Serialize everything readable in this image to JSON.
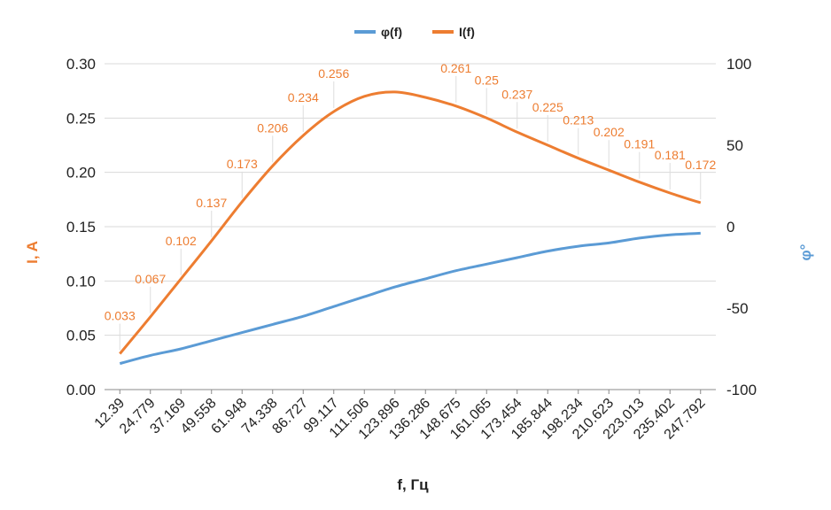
{
  "chart_data": {
    "type": "line",
    "xlabel": "f, Гц",
    "ylabel_left": "I, A",
    "ylabel_right": "φ°",
    "x": [
      12.39,
      24.779,
      37.169,
      49.558,
      61.948,
      74.338,
      86.727,
      99.117,
      111.506,
      123.896,
      136.286,
      148.675,
      161.065,
      173.454,
      185.844,
      198.234,
      210.623,
      223.013,
      235.402,
      247.792
    ],
    "x_tick_labels": [
      "12.39",
      "24.779",
      "37.169",
      "49.558",
      "61.948",
      "74.338",
      "86.727",
      "99.117",
      "111.506",
      "123.896",
      "136.286",
      "148.675",
      "161.065",
      "173.454",
      "185.844",
      "198.234",
      "210.623",
      "223.013",
      "235.402",
      "247.792"
    ],
    "ylim_left": [
      0,
      0.3
    ],
    "yticks_left": [
      "0.00",
      "0.05",
      "0.10",
      "0.15",
      "0.20",
      "0.25",
      "0.30"
    ],
    "ylim_right": [
      -100,
      100
    ],
    "yticks_right": [
      "-100",
      "-50",
      "0",
      "50",
      "100"
    ],
    "grid": true,
    "legend_position": "top",
    "series": [
      {
        "name": "φ(f)",
        "axis": "right",
        "color": "#5b9bd5",
        "values": [
          -84,
          -79,
          -75,
          -70,
          -65,
          -60,
          -55,
          -49,
          -43,
          -37,
          -32,
          -27,
          -23,
          -19,
          -15,
          -12,
          -10,
          -7,
          -5,
          -4
        ]
      },
      {
        "name": "I(f)",
        "axis": "left",
        "color": "#ed7d31",
        "values": [
          0.033,
          0.067,
          0.102,
          0.137,
          0.173,
          0.206,
          0.234,
          0.256,
          0.27,
          0.274,
          0.269,
          0.261,
          0.25,
          0.237,
          0.225,
          0.213,
          0.202,
          0.191,
          0.181,
          0.172
        ],
        "data_labels": [
          "0.033",
          "0.067",
          "0.102",
          "0.137",
          "0.173",
          "0.206",
          "0.234",
          "0.256",
          "",
          "",
          "",
          "0.261",
          "0.25",
          "0.237",
          "0.225",
          "0.213",
          "0.202",
          "0.191",
          "0.181",
          "0.172"
        ]
      }
    ]
  }
}
